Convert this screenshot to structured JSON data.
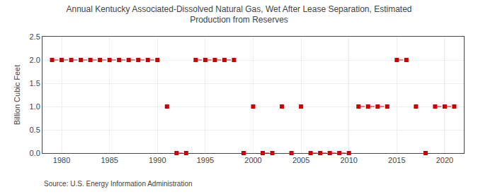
{
  "chart_data": {
    "type": "scatter",
    "title": "Annual Kentucky Associated-Dissolved Natural Gas, Wet After Lease Separation, Estimated\nProduction from Reserves",
    "y_label": "Billion Cubic Feet",
    "annotations": [
      "Source: U.S. Energy Information Administration"
    ],
    "x": [
      1979,
      1980,
      1981,
      1982,
      1983,
      1984,
      1985,
      1986,
      1987,
      1988,
      1989,
      1990,
      1991,
      1992,
      1993,
      1994,
      1995,
      1996,
      1997,
      1998,
      1999,
      2000,
      2001,
      2002,
      2003,
      2004,
      2005,
      2006,
      2007,
      2008,
      2009,
      2010,
      2011,
      2012,
      2013,
      2014,
      2015,
      2016,
      2017,
      2018,
      2019,
      2020,
      2021
    ],
    "values": [
      2.0,
      2.0,
      2.0,
      2.0,
      2.0,
      2.0,
      2.0,
      2.0,
      2.0,
      2.0,
      2.0,
      2.0,
      1.0,
      0.0,
      0.0,
      2.0,
      2.0,
      2.0,
      2.0,
      2.0,
      0.0,
      1.0,
      0.0,
      0.0,
      1.0,
      0.0,
      1.0,
      0.0,
      0.0,
      0.0,
      0.0,
      0.0,
      1.0,
      1.0,
      1.0,
      1.0,
      2.0,
      2.0,
      1.0,
      0.0,
      1.0,
      1.0,
      1.0
    ],
    "color": "#cc0000",
    "marker": "square",
    "line_style": "dashed",
    "xlim": [
      1978,
      2022
    ],
    "xticks": [
      1980,
      1985,
      1990,
      1995,
      2000,
      2005,
      2010,
      2015,
      2020
    ],
    "ylim": [
      0,
      2.5
    ],
    "yticks": [
      {
        "value": 0.0,
        "label": "0.0"
      },
      0.5,
      {
        "value": 1.0,
        "label": "1.0"
      },
      1.5,
      {
        "value": 2.0,
        "label": "2.0"
      },
      2.5
    ],
    "grid": true
  }
}
